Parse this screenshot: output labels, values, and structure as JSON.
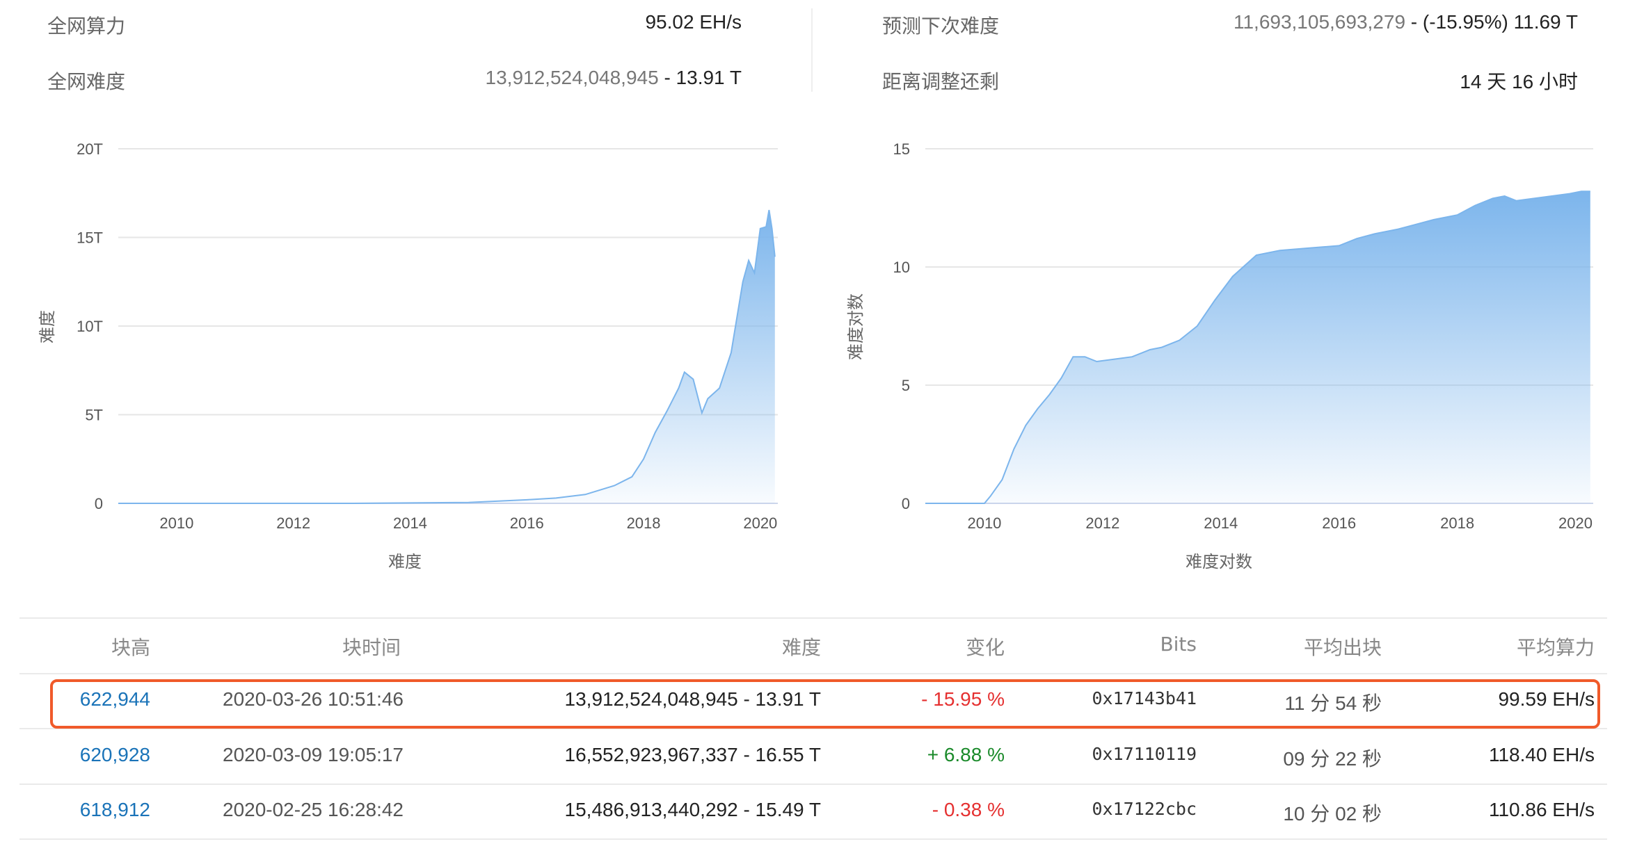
{
  "stats": {
    "hashrate_label": "全网算力",
    "hashrate_value": "95.02 EH/s",
    "difficulty_label": "全网难度",
    "difficulty_raw": "13,912,524,048,945",
    "difficulty_short": " - 13.91 T",
    "next_label": "预测下次难度",
    "next_raw": "11,693,105,693,279",
    "next_short": " - (-15.95%) 11.69 T",
    "remain_label": "距离调整还剩",
    "remain_value": "14 天 16 小时"
  },
  "charts": {
    "left": {
      "y_title": "难度",
      "x_title": "难度",
      "y_ticks": [
        "0",
        "5T",
        "10T",
        "15T",
        "20T"
      ],
      "x_ticks": [
        "2010",
        "2012",
        "2014",
        "2016",
        "2018",
        "2020"
      ]
    },
    "right": {
      "y_title": "难度对数",
      "x_title": "难度对数",
      "y_ticks": [
        "0",
        "5",
        "10",
        "15"
      ],
      "x_ticks": [
        "2010",
        "2012",
        "2014",
        "2016",
        "2018",
        "2020"
      ]
    }
  },
  "chart_data": [
    {
      "type": "area",
      "ylabel": "难度",
      "xlabel": "难度",
      "xlim": [
        2009.0,
        2020.3
      ],
      "ylim": [
        0,
        20
      ],
      "unit": "T",
      "series": [
        {
          "x": [
            2009.0,
            2011.0,
            2013.0,
            2015.0,
            2016.0,
            2016.5,
            2017.0,
            2017.5,
            2017.8,
            2018.0,
            2018.2,
            2018.4,
            2018.6,
            2018.7,
            2018.85,
            2019.0,
            2019.1,
            2019.3,
            2019.5,
            2019.7,
            2019.8,
            2019.9,
            2020.0,
            2020.1,
            2020.15,
            2020.2,
            2020.25
          ],
          "y": [
            0.0,
            0.0,
            0.0,
            0.05,
            0.2,
            0.3,
            0.5,
            1.0,
            1.5,
            2.5,
            4.0,
            5.2,
            6.5,
            7.4,
            7.0,
            5.1,
            5.9,
            6.5,
            8.5,
            12.5,
            13.7,
            13.0,
            15.5,
            15.6,
            16.55,
            15.49,
            13.91
          ]
        }
      ]
    },
    {
      "type": "area",
      "ylabel": "难度对数",
      "xlabel": "难度对数",
      "xlim": [
        2009.0,
        2020.3
      ],
      "ylim": [
        0,
        15
      ],
      "series": [
        {
          "x": [
            2009.0,
            2010.0,
            2010.1,
            2010.3,
            2010.5,
            2010.7,
            2010.9,
            2011.1,
            2011.3,
            2011.5,
            2011.7,
            2011.9,
            2012.2,
            2012.5,
            2012.8,
            2013.0,
            2013.3,
            2013.6,
            2013.9,
            2014.2,
            2014.6,
            2015.0,
            2015.5,
            2016.0,
            2016.3,
            2016.6,
            2017.0,
            2017.3,
            2017.6,
            2018.0,
            2018.3,
            2018.6,
            2018.8,
            2019.0,
            2019.3,
            2019.6,
            2019.9,
            2020.1,
            2020.25
          ],
          "y": [
            0.0,
            0.0,
            0.3,
            1.0,
            2.3,
            3.3,
            4.0,
            4.6,
            5.3,
            6.2,
            6.2,
            6.0,
            6.1,
            6.2,
            6.5,
            6.6,
            6.9,
            7.5,
            8.6,
            9.6,
            10.5,
            10.7,
            10.8,
            10.9,
            11.2,
            11.4,
            11.6,
            11.8,
            12.0,
            12.2,
            12.6,
            12.9,
            13.0,
            12.8,
            12.9,
            13.0,
            13.1,
            13.2,
            13.2
          ]
        }
      ]
    }
  ],
  "table": {
    "headers": [
      "块高",
      "块时间",
      "难度",
      "变化",
      "Bits",
      "平均出块",
      "平均算力"
    ],
    "rows": [
      {
        "height": "622,944",
        "time": "2020-03-26 10:51:46",
        "difficulty": "13,912,524,048,945 - 13.91 T",
        "change": "- 15.95 %",
        "change_dir": "neg",
        "bits": "0x17143b41",
        "avg_block": "11 分 54 秒",
        "avg_hash": "99.59 EH/s"
      },
      {
        "height": "620,928",
        "time": "2020-03-09 19:05:17",
        "difficulty": "16,552,923,967,337 - 16.55 T",
        "change": "+ 6.88 %",
        "change_dir": "pos",
        "bits": "0x17110119",
        "avg_block": "09 分 22 秒",
        "avg_hash": "118.40 EH/s"
      },
      {
        "height": "618,912",
        "time": "2020-02-25 16:28:42",
        "difficulty": "15,486,913,440,292 - 15.49 T",
        "change": "- 0.38 %",
        "change_dir": "neg",
        "bits": "0x17122cbc",
        "avg_block": "10 分 02 秒",
        "avg_hash": "110.86 EH/s"
      }
    ]
  }
}
